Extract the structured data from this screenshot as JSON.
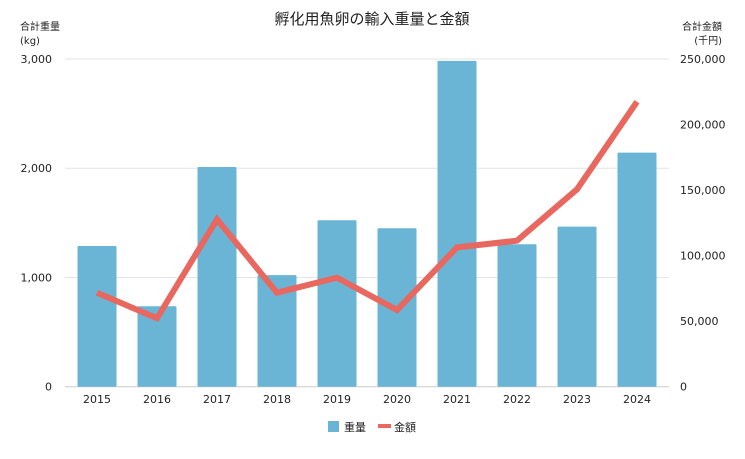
{
  "chart_data": {
    "type": "bar+line",
    "title": "孵化用魚卵の輸入重量と金額",
    "ylabel_left": [
      "合計重量",
      "(kg)"
    ],
    "ylabel_right": [
      "合計金額",
      "(千円)"
    ],
    "categories": [
      "2015",
      "2016",
      "2017",
      "2018",
      "2019",
      "2020",
      "2021",
      "2022",
      "2023",
      "2024"
    ],
    "ylim_left": [
      0,
      3000
    ],
    "ylim_right": [
      0,
      250000
    ],
    "yticks_left": [
      "0",
      "1,000",
      "2,000",
      "3,000"
    ],
    "yticks_right": [
      "0",
      "50,000",
      "100,000",
      "150,000",
      "200,000",
      "250,000"
    ],
    "grid": true,
    "legend_position": "bottom",
    "series": [
      {
        "name": "重量",
        "type": "bar",
        "axis": "left",
        "color": "#6ab4d6",
        "values": [
          1288,
          737,
          2011,
          1022,
          1524,
          1450,
          2983,
          1304,
          1465,
          2143
        ]
      },
      {
        "name": "金額",
        "type": "line",
        "axis": "right",
        "color": "#e8685f",
        "values": [
          71700,
          52200,
          127700,
          71700,
          83200,
          58500,
          106300,
          111400,
          150600,
          217400
        ]
      }
    ]
  }
}
